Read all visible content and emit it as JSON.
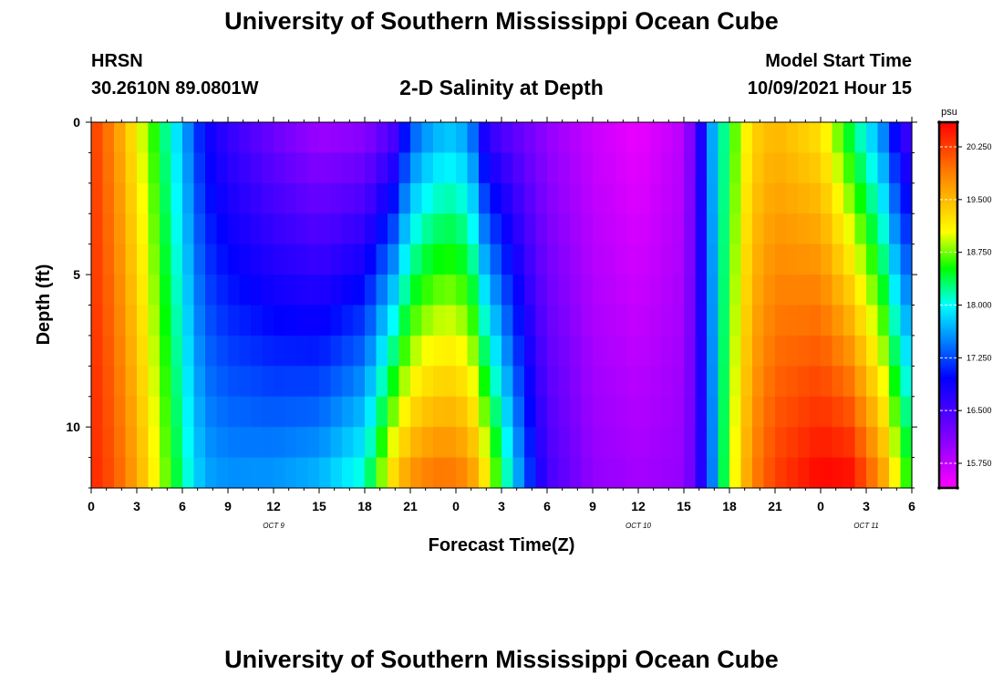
{
  "header": {
    "title": "University of Southern Mississippi Ocean Cube",
    "station": "HRSN",
    "coords": "30.2610N  89.0801W",
    "subtitle": "2-D Salinity at Depth",
    "model_start_label": "Model Start Time",
    "model_start_value": "10/09/2021 Hour 15"
  },
  "footer": {
    "title": "University of Southern Mississippi Ocean Cube"
  },
  "chart_data": {
    "type": "heatmap",
    "title": "2-D Salinity at Depth",
    "xlabel": "Forecast Time(Z)",
    "ylabel": "Depth (ft)",
    "x_ticks": [
      "0",
      "3",
      "6",
      "9",
      "12",
      "15",
      "18",
      "21",
      "0",
      "3",
      "6",
      "9",
      "12",
      "15",
      "18",
      "21",
      "0",
      "3",
      "6"
    ],
    "x_hours": [
      0,
      54
    ],
    "date_labels": [
      {
        "label": "OCT 9",
        "hour": 12
      },
      {
        "label": "OCT 10",
        "hour": 36
      },
      {
        "label": "OCT 11",
        "hour": 51
      }
    ],
    "y_ticks": [
      "0",
      "5",
      "10"
    ],
    "y_tick_values": [
      0,
      5,
      10
    ],
    "ylim": [
      0,
      12
    ],
    "colorbar": {
      "unit": "psu",
      "ticks": [
        "20.250",
        "19.500",
        "18.750",
        "18.000",
        "17.250",
        "16.500",
        "15.750"
      ],
      "tick_values": [
        20.25,
        19.5,
        18.75,
        18.0,
        17.25,
        16.5,
        15.75
      ],
      "range": [
        15.4,
        20.6
      ]
    },
    "depths": [
      0,
      1,
      2,
      3,
      4,
      5,
      6,
      7,
      8,
      9,
      10,
      11
    ],
    "profiles": [
      {
        "hour": 0,
        "top": 20.3,
        "bottom": 20.4
      },
      {
        "hour": 1.5,
        "top": 19.8,
        "bottom": 20.1
      },
      {
        "hour": 3,
        "top": 19.1,
        "bottom": 19.6
      },
      {
        "hour": 4.5,
        "top": 18.4,
        "bottom": 18.9
      },
      {
        "hour": 6,
        "top": 17.7,
        "bottom": 18.2
      },
      {
        "hour": 6.7,
        "top": 17.3,
        "bottom": 17.9
      },
      {
        "hour": 7.5,
        "top": 16.9,
        "bottom": 17.6
      },
      {
        "hour": 9,
        "top": 16.6,
        "bottom": 17.5
      },
      {
        "hour": 12,
        "top": 16.2,
        "bottom": 17.5
      },
      {
        "hour": 15,
        "top": 15.9,
        "bottom": 17.6
      },
      {
        "hour": 18,
        "top": 16.0,
        "bottom": 18.0
      },
      {
        "hour": 20,
        "top": 16.4,
        "bottom": 19.2
      },
      {
        "hour": 21,
        "top": 17.2,
        "bottom": 19.6
      },
      {
        "hour": 22.5,
        "top": 17.6,
        "bottom": 19.8
      },
      {
        "hour": 24,
        "top": 17.7,
        "bottom": 19.8
      },
      {
        "hour": 25,
        "top": 17.4,
        "bottom": 19.6
      },
      {
        "hour": 26,
        "top": 16.6,
        "bottom": 19.0
      },
      {
        "hour": 27,
        "top": 16.4,
        "bottom": 18.3
      },
      {
        "hour": 28.5,
        "top": 16.2,
        "bottom": 17.3
      },
      {
        "hour": 30,
        "top": 16.0,
        "bottom": 16.5
      },
      {
        "hour": 33,
        "top": 15.7,
        "bottom": 16.0
      },
      {
        "hour": 36,
        "top": 15.5,
        "bottom": 15.9
      },
      {
        "hour": 39,
        "top": 15.8,
        "bottom": 16.0
      },
      {
        "hour": 39.8,
        "top": 16.4,
        "bottom": 16.4
      },
      {
        "hour": 40.8,
        "top": 17.6,
        "bottom": 17.4
      },
      {
        "hour": 42,
        "top": 18.5,
        "bottom": 18.8
      },
      {
        "hour": 43.5,
        "top": 19.3,
        "bottom": 19.8
      },
      {
        "hour": 45,
        "top": 19.5,
        "bottom": 20.2
      },
      {
        "hour": 48,
        "top": 19.2,
        "bottom": 20.5
      },
      {
        "hour": 50,
        "top": 18.3,
        "bottom": 20.4
      },
      {
        "hour": 52,
        "top": 17.5,
        "bottom": 19.6
      },
      {
        "hour": 53,
        "top": 16.8,
        "bottom": 18.9
      },
      {
        "hour": 54,
        "top": 16.4,
        "bottom": 18.3
      }
    ]
  }
}
